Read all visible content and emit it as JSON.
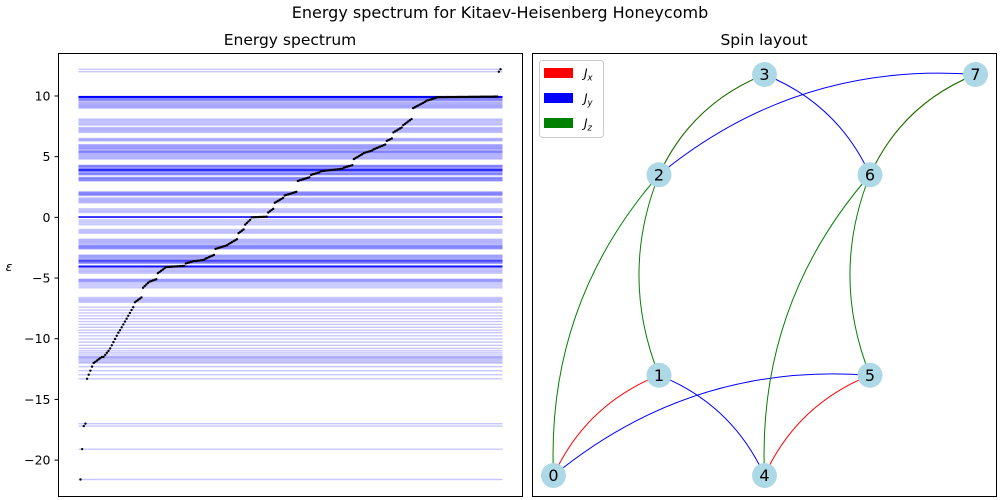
{
  "figure": {
    "suptitle": "Energy spectrum for Kitaev-Heisenberg Honeycomb"
  },
  "chart_data": [
    {
      "type": "scatter",
      "title": "Energy spectrum",
      "xlabel": "",
      "ylabel": "ε",
      "ylim": [
        -23,
        13.5
      ],
      "yticks": [
        10,
        5,
        0,
        -5,
        -10,
        -15,
        -20
      ],
      "ytick_labels": [
        "10",
        "5",
        "0",
        "−5",
        "−10",
        "−15",
        "−20"
      ],
      "xticks": [],
      "grid": false,
      "point_color": "#000000",
      "line_color": "#0000ff",
      "n_levels": 256,
      "levels": [
        {
          "range": [
            0,
            1
          ],
          "values": [
            -21.6,
            -21.6
          ]
        },
        {
          "range": [
            1,
            2
          ],
          "values": [
            -19.1,
            -19.1
          ]
        },
        {
          "range": [
            2,
            4
          ],
          "values": [
            -17.2,
            -17.0
          ]
        },
        {
          "range": [
            4,
            8
          ],
          "values": [
            -13.3,
            -12.3
          ]
        },
        {
          "range": [
            8,
            14
          ],
          "values": [
            -12.0,
            -11.5
          ]
        },
        {
          "range": [
            14,
            18
          ],
          "values": [
            -11.5,
            -11.0
          ]
        },
        {
          "range": [
            18,
            24
          ],
          "values": [
            -10.8,
            -9.5
          ]
        },
        {
          "range": [
            24,
            33
          ],
          "values": [
            -9.3,
            -7.4
          ]
        },
        {
          "range": [
            33,
            38
          ],
          "values": [
            -7.0,
            -6.6
          ]
        },
        {
          "range": [
            38,
            42
          ],
          "values": [
            -5.8,
            -5.4
          ]
        },
        {
          "range": [
            42,
            47
          ],
          "values": [
            -5.3,
            -5.1
          ]
        },
        {
          "range": [
            47,
            52
          ],
          "values": [
            -4.6,
            -4.2
          ]
        },
        {
          "range": [
            52,
            64
          ],
          "values": [
            -4.1,
            -4.0
          ]
        },
        {
          "range": [
            64,
            70
          ],
          "values": [
            -3.8,
            -3.6
          ]
        },
        {
          "range": [
            70,
            76
          ],
          "values": [
            -3.6,
            -3.5
          ]
        },
        {
          "range": [
            76,
            82
          ],
          "values": [
            -3.4,
            -3.1
          ]
        },
        {
          "range": [
            82,
            90
          ],
          "values": [
            -2.6,
            -2.3
          ]
        },
        {
          "range": [
            90,
            96
          ],
          "values": [
            -2.2,
            -1.8
          ]
        },
        {
          "range": [
            96,
            100
          ],
          "values": [
            -1.3,
            -1.0
          ]
        },
        {
          "range": [
            100,
            104
          ],
          "values": [
            -0.6,
            -0.2
          ]
        },
        {
          "range": [
            104,
            114
          ],
          "values": [
            0.0,
            0.05
          ]
        },
        {
          "range": [
            114,
            118
          ],
          "values": [
            0.4,
            0.7
          ]
        },
        {
          "range": [
            118,
            124
          ],
          "values": [
            1.2,
            1.6
          ]
        },
        {
          "range": [
            124,
            132
          ],
          "values": [
            1.8,
            2.1
          ]
        },
        {
          "range": [
            132,
            140
          ],
          "values": [
            3.0,
            3.3
          ]
        },
        {
          "range": [
            140,
            146
          ],
          "values": [
            3.5,
            3.7
          ]
        },
        {
          "range": [
            146,
            160
          ],
          "values": [
            3.8,
            4.0
          ]
        },
        {
          "range": [
            160,
            166
          ],
          "values": [
            4.1,
            4.3
          ]
        },
        {
          "range": [
            166,
            172
          ],
          "values": [
            4.8,
            5.2
          ]
        },
        {
          "range": [
            172,
            178
          ],
          "values": [
            5.3,
            5.5
          ]
        },
        {
          "range": [
            178,
            186
          ],
          "values": [
            5.6,
            6.0
          ]
        },
        {
          "range": [
            186,
            190
          ],
          "values": [
            6.3,
            6.5
          ]
        },
        {
          "range": [
            190,
            196
          ],
          "values": [
            7.0,
            7.4
          ]
        },
        {
          "range": [
            196,
            202
          ],
          "values": [
            7.6,
            8.1
          ]
        },
        {
          "range": [
            202,
            210
          ],
          "values": [
            9.0,
            9.5
          ]
        },
        {
          "range": [
            210,
            218
          ],
          "values": [
            9.6,
            9.9
          ]
        },
        {
          "range": [
            218,
            254
          ],
          "values": [
            9.9,
            9.95
          ]
        },
        {
          "range": [
            254,
            256
          ],
          "values": [
            12.0,
            12.2
          ]
        }
      ]
    },
    {
      "type": "network",
      "title": "Spin layout",
      "node_color": "#add8e6",
      "nodes": [
        {
          "id": "0",
          "pos": [
            0,
            0
          ]
        },
        {
          "id": "1",
          "pos": [
            0.25,
            1
          ]
        },
        {
          "id": "2",
          "pos": [
            0.25,
            3
          ]
        },
        {
          "id": "3",
          "pos": [
            0.5,
            4
          ]
        },
        {
          "id": "4",
          "pos": [
            0.5,
            0
          ]
        },
        {
          "id": "5",
          "pos": [
            0.75,
            1
          ]
        },
        {
          "id": "6",
          "pos": [
            0.75,
            3
          ]
        },
        {
          "id": "7",
          "pos": [
            1,
            4
          ]
        }
      ],
      "edges": [
        {
          "u": "0",
          "v": "1",
          "type": "Jx"
        },
        {
          "u": "0",
          "v": "5",
          "type": "Jy"
        },
        {
          "u": "0",
          "v": "2",
          "type": "Jz"
        },
        {
          "u": "1",
          "v": "4",
          "type": "Jy"
        },
        {
          "u": "1",
          "v": "2",
          "type": "Jz"
        },
        {
          "u": "2",
          "v": "3",
          "type": "Jx"
        },
        {
          "u": "2",
          "v": "3",
          "type": "Jz"
        },
        {
          "u": "2",
          "v": "7",
          "type": "Jy"
        },
        {
          "u": "3",
          "v": "6",
          "type": "Jy"
        },
        {
          "u": "4",
          "v": "5",
          "type": "Jx"
        },
        {
          "u": "4",
          "v": "6",
          "type": "Jz"
        },
        {
          "u": "5",
          "v": "6",
          "type": "Jz"
        },
        {
          "u": "6",
          "v": "7",
          "type": "Jx"
        },
        {
          "u": "6",
          "v": "7",
          "type": "Jz"
        }
      ],
      "legend": {
        "placement": "top-left",
        "entries": [
          {
            "label": "J",
            "sub": "x",
            "color": "#ff0000"
          },
          {
            "label": "J",
            "sub": "y",
            "color": "#0000ff"
          },
          {
            "label": "J",
            "sub": "z",
            "color": "#008000"
          }
        ]
      }
    }
  ]
}
